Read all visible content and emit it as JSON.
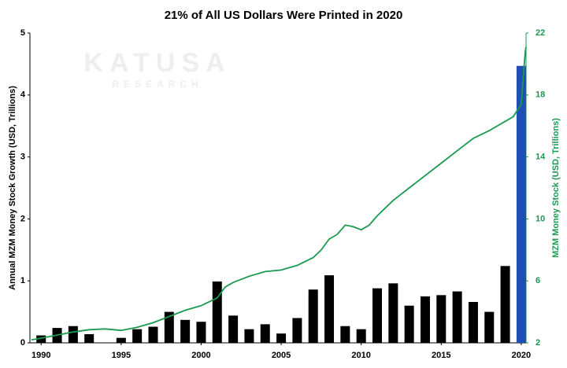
{
  "chart_data": {
    "type": "bar",
    "title": "21% of All US Dollars Were Printed in 2020",
    "watermark": [
      "KATUSA",
      "RESEARCH"
    ],
    "ylabel": "Annual MZM Money Stock Growth (USD, Trillions)",
    "y2label": "MZM Money Stock (USD, Trillions)",
    "xlim": [
      1989.3,
      2020.3
    ],
    "xticks": [
      1990,
      1995,
      2000,
      2005,
      2010,
      2015,
      2020
    ],
    "ylim": [
      0,
      5
    ],
    "yticks": [
      0,
      1,
      2,
      3,
      4,
      5
    ],
    "y2lim": [
      2,
      22
    ],
    "y2ticks": [
      2,
      6,
      10,
      14,
      18,
      22
    ],
    "y2color": "#1a9a50",
    "series": [
      {
        "type": "bar",
        "x": [
          1990,
          1991,
          1992,
          1993,
          1994,
          1995,
          1996,
          1997,
          1998,
          1999,
          2000,
          2001,
          2002,
          2003,
          2004,
          2005,
          2006,
          2007,
          2008,
          2009,
          2010,
          2011,
          2012,
          2013,
          2014,
          2015,
          2016,
          2017,
          2018,
          2019,
          2020
        ],
        "values": [
          0.12,
          0.24,
          0.27,
          0.14,
          0,
          0.08,
          0.22,
          0.26,
          0.5,
          0.37,
          0.34,
          0.99,
          0.44,
          0.22,
          0.3,
          0.15,
          0.4,
          0.86,
          1.09,
          0.27,
          0.22,
          0.88,
          0.96,
          0.6,
          0.75,
          0.77,
          0.83,
          0.66,
          0.5,
          1.24,
          4.47
        ],
        "colors": [
          "#000",
          "#000",
          "#000",
          "#000",
          "#000",
          "#000",
          "#000",
          "#000",
          "#000",
          "#000",
          "#000",
          "#000",
          "#000",
          "#000",
          "#000",
          "#000",
          "#000",
          "#000",
          "#000",
          "#000",
          "#000",
          "#000",
          "#000",
          "#000",
          "#000",
          "#000",
          "#000",
          "#000",
          "#000",
          "#000",
          "#1f4eb4"
        ]
      },
      {
        "type": "line",
        "axis": "y2",
        "color": "#1a9a50",
        "x": [
          1989.4,
          1990,
          1991,
          1992,
          1993,
          1994,
          1995,
          1996,
          1997,
          1998,
          1999,
          2000,
          2001,
          2001.5,
          2002,
          2003,
          2004,
          2005,
          2006,
          2007,
          2007.5,
          2008,
          2008.5,
          2009,
          2009.5,
          2010,
          2010.5,
          2011,
          2012,
          2013,
          2014,
          2015,
          2016,
          2017,
          2018,
          2019,
          2019.5,
          2020,
          2020.15,
          2020.25,
          2020.3
        ],
        "values": [
          2.2,
          2.3,
          2.5,
          2.7,
          2.85,
          2.9,
          2.8,
          3.0,
          3.3,
          3.7,
          4.1,
          4.4,
          4.9,
          5.6,
          5.9,
          6.3,
          6.6,
          6.7,
          7.0,
          7.5,
          8.0,
          8.7,
          9.0,
          9.6,
          9.5,
          9.3,
          9.6,
          10.2,
          11.2,
          12.0,
          12.8,
          13.6,
          14.4,
          15.2,
          15.7,
          16.3,
          16.6,
          17.4,
          19.5,
          20.8,
          21.1
        ]
      }
    ]
  }
}
